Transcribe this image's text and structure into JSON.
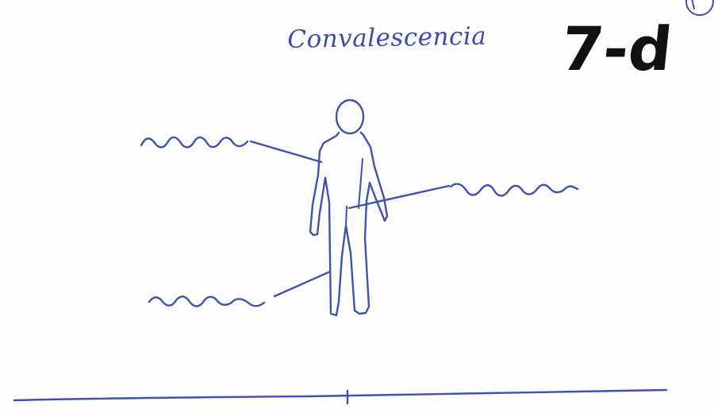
{
  "title": "Convalescencia",
  "code": "7-d",
  "colors": {
    "ink": "#3f52ad",
    "marker": "#111111",
    "paper": "#fdfdfd"
  }
}
